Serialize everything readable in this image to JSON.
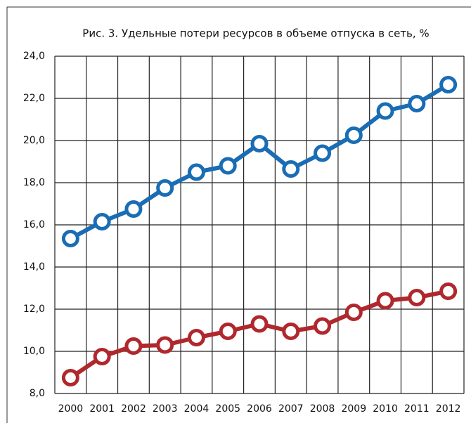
{
  "chart_data": {
    "type": "line",
    "title": "Рис. 3. Удельные потери ресурсов в объеме отпуска в сеть, %",
    "categories": [
      "2000",
      "2001",
      "2002",
      "2003",
      "2004",
      "2005",
      "2006",
      "2007",
      "2008",
      "2009",
      "2010",
      "2011",
      "2012"
    ],
    "series": [
      {
        "color": "#1a6db4",
        "values": [
          15.35,
          16.15,
          16.75,
          17.75,
          18.5,
          18.8,
          19.85,
          18.65,
          19.4,
          20.25,
          21.4,
          21.75,
          22.65
        ]
      },
      {
        "color": "#b0282d",
        "values": [
          8.75,
          9.75,
          10.25,
          10.3,
          10.65,
          10.95,
          11.3,
          10.95,
          11.2,
          11.85,
          12.4,
          12.55,
          12.85
        ]
      }
    ],
    "ylim": [
      8,
      24
    ],
    "yticks": [
      {
        "value": 8,
        "label": "8,0"
      },
      {
        "value": 10,
        "label": "10,0"
      },
      {
        "value": 12,
        "label": "12,0"
      },
      {
        "value": 14,
        "label": "14,0"
      },
      {
        "value": 16,
        "label": "16,0"
      },
      {
        "value": 18,
        "label": "18,0"
      },
      {
        "value": 20,
        "label": "20,0"
      },
      {
        "value": 22,
        "label": "22,0"
      },
      {
        "value": 24,
        "label": "24,0"
      }
    ],
    "grid": true
  }
}
